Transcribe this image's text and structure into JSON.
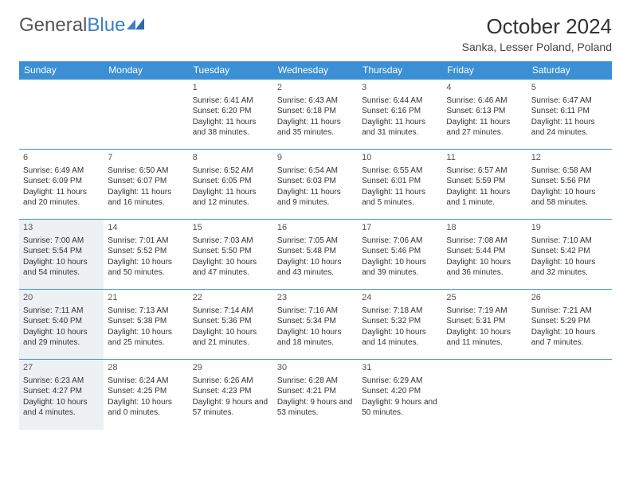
{
  "brand": {
    "part1": "General",
    "part2": "Blue"
  },
  "title": "October 2024",
  "location": "Sanka, Lesser Poland, Poland",
  "colors": {
    "header_bg": "#3b8fd4",
    "header_text": "#ffffff",
    "row_border": "#3b8fd4",
    "shaded_bg": "#eef1f3",
    "text": "#333333",
    "brand_gray": "#555555",
    "brand_blue": "#3b7fc4"
  },
  "weekdays": [
    "Sunday",
    "Monday",
    "Tuesday",
    "Wednesday",
    "Thursday",
    "Friday",
    "Saturday"
  ],
  "weeks": [
    [
      {
        "blank": true
      },
      {
        "blank": true
      },
      {
        "n": "1",
        "sr": "6:41 AM",
        "ss": "6:20 PM",
        "dl": "11 hours and 38 minutes."
      },
      {
        "n": "2",
        "sr": "6:43 AM",
        "ss": "6:18 PM",
        "dl": "11 hours and 35 minutes."
      },
      {
        "n": "3",
        "sr": "6:44 AM",
        "ss": "6:16 PM",
        "dl": "11 hours and 31 minutes."
      },
      {
        "n": "4",
        "sr": "6:46 AM",
        "ss": "6:13 PM",
        "dl": "11 hours and 27 minutes."
      },
      {
        "n": "5",
        "sr": "6:47 AM",
        "ss": "6:11 PM",
        "dl": "11 hours and 24 minutes."
      }
    ],
    [
      {
        "n": "6",
        "sr": "6:49 AM",
        "ss": "6:09 PM",
        "dl": "11 hours and 20 minutes."
      },
      {
        "n": "7",
        "sr": "6:50 AM",
        "ss": "6:07 PM",
        "dl": "11 hours and 16 minutes."
      },
      {
        "n": "8",
        "sr": "6:52 AM",
        "ss": "6:05 PM",
        "dl": "11 hours and 12 minutes."
      },
      {
        "n": "9",
        "sr": "6:54 AM",
        "ss": "6:03 PM",
        "dl": "11 hours and 9 minutes."
      },
      {
        "n": "10",
        "sr": "6:55 AM",
        "ss": "6:01 PM",
        "dl": "11 hours and 5 minutes."
      },
      {
        "n": "11",
        "sr": "6:57 AM",
        "ss": "5:59 PM",
        "dl": "11 hours and 1 minute."
      },
      {
        "n": "12",
        "sr": "6:58 AM",
        "ss": "5:56 PM",
        "dl": "10 hours and 58 minutes."
      }
    ],
    [
      {
        "n": "13",
        "sr": "7:00 AM",
        "ss": "5:54 PM",
        "dl": "10 hours and 54 minutes.",
        "shaded": true
      },
      {
        "n": "14",
        "sr": "7:01 AM",
        "ss": "5:52 PM",
        "dl": "10 hours and 50 minutes."
      },
      {
        "n": "15",
        "sr": "7:03 AM",
        "ss": "5:50 PM",
        "dl": "10 hours and 47 minutes."
      },
      {
        "n": "16",
        "sr": "7:05 AM",
        "ss": "5:48 PM",
        "dl": "10 hours and 43 minutes."
      },
      {
        "n": "17",
        "sr": "7:06 AM",
        "ss": "5:46 PM",
        "dl": "10 hours and 39 minutes."
      },
      {
        "n": "18",
        "sr": "7:08 AM",
        "ss": "5:44 PM",
        "dl": "10 hours and 36 minutes."
      },
      {
        "n": "19",
        "sr": "7:10 AM",
        "ss": "5:42 PM",
        "dl": "10 hours and 32 minutes."
      }
    ],
    [
      {
        "n": "20",
        "sr": "7:11 AM",
        "ss": "5:40 PM",
        "dl": "10 hours and 29 minutes.",
        "shaded": true
      },
      {
        "n": "21",
        "sr": "7:13 AM",
        "ss": "5:38 PM",
        "dl": "10 hours and 25 minutes."
      },
      {
        "n": "22",
        "sr": "7:14 AM",
        "ss": "5:36 PM",
        "dl": "10 hours and 21 minutes."
      },
      {
        "n": "23",
        "sr": "7:16 AM",
        "ss": "5:34 PM",
        "dl": "10 hours and 18 minutes."
      },
      {
        "n": "24",
        "sr": "7:18 AM",
        "ss": "5:32 PM",
        "dl": "10 hours and 14 minutes."
      },
      {
        "n": "25",
        "sr": "7:19 AM",
        "ss": "5:31 PM",
        "dl": "10 hours and 11 minutes."
      },
      {
        "n": "26",
        "sr": "7:21 AM",
        "ss": "5:29 PM",
        "dl": "10 hours and 7 minutes."
      }
    ],
    [
      {
        "n": "27",
        "sr": "6:23 AM",
        "ss": "4:27 PM",
        "dl": "10 hours and 4 minutes.",
        "shaded": true
      },
      {
        "n": "28",
        "sr": "6:24 AM",
        "ss": "4:25 PM",
        "dl": "10 hours and 0 minutes."
      },
      {
        "n": "29",
        "sr": "6:26 AM",
        "ss": "4:23 PM",
        "dl": "9 hours and 57 minutes."
      },
      {
        "n": "30",
        "sr": "6:28 AM",
        "ss": "4:21 PM",
        "dl": "9 hours and 53 minutes."
      },
      {
        "n": "31",
        "sr": "6:29 AM",
        "ss": "4:20 PM",
        "dl": "9 hours and 50 minutes."
      },
      {
        "blank": true
      },
      {
        "blank": true
      }
    ]
  ],
  "labels": {
    "sunrise": "Sunrise:",
    "sunset": "Sunset:",
    "daylight": "Daylight:"
  }
}
